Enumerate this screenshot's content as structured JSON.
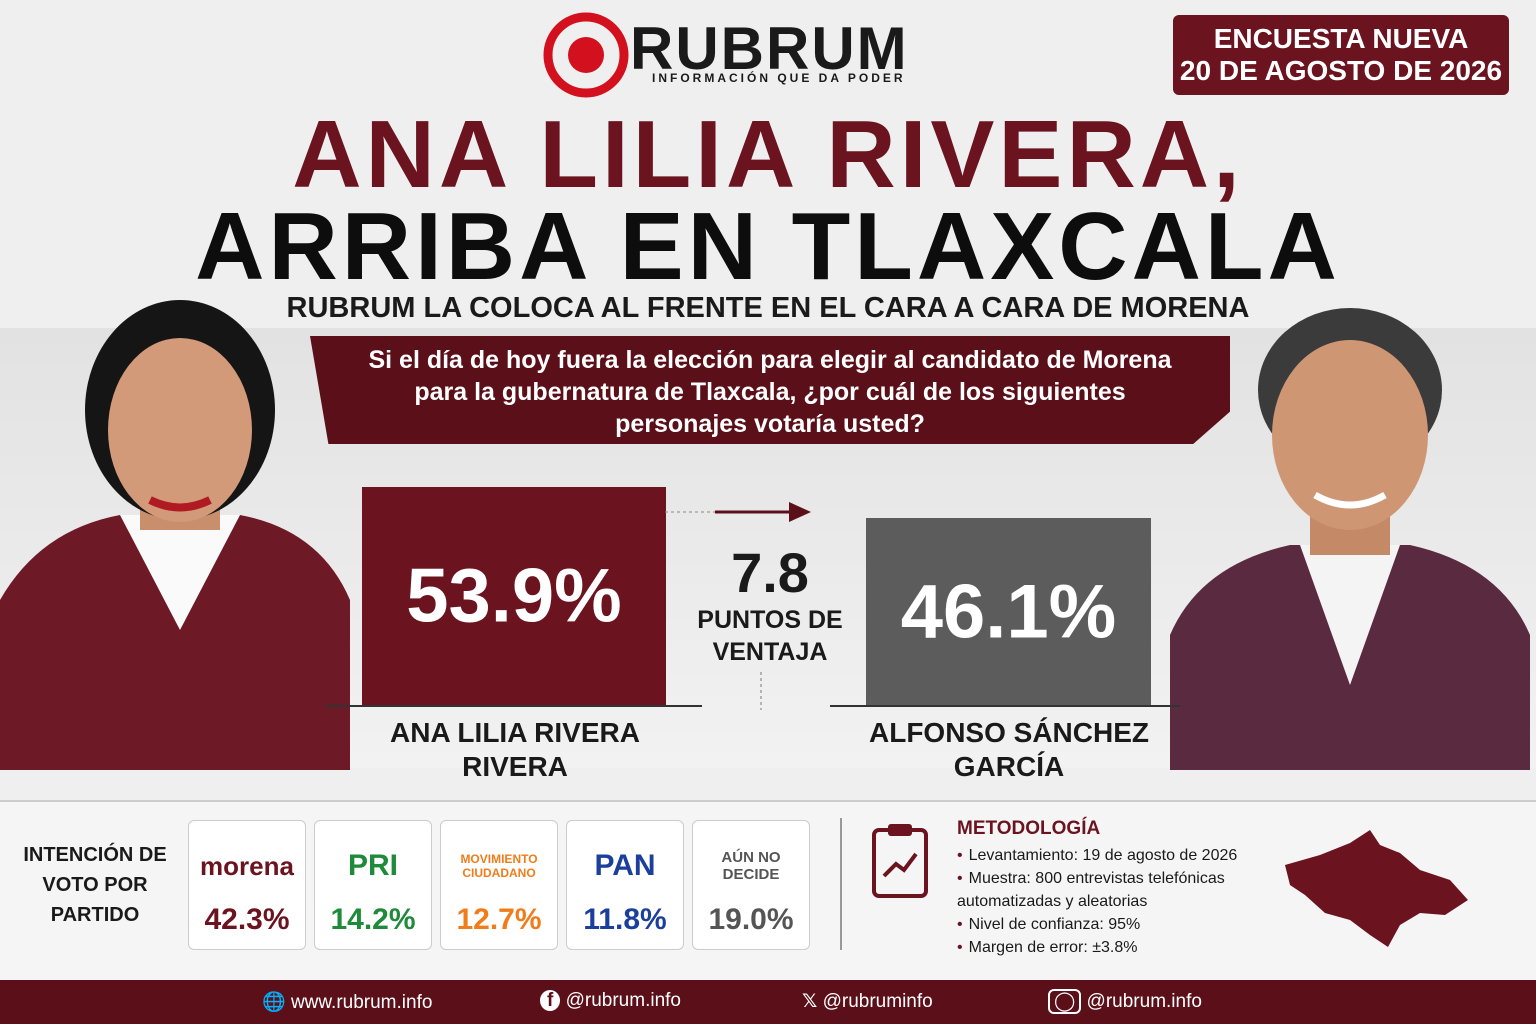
{
  "header": {
    "brand": "RUBRUM",
    "tagline": "INFORMACIÓN QUE DA PODER",
    "badge_line1": "ENCUESTA NUEVA",
    "badge_line2": "20 DE AGOSTO DE 2026",
    "headline_line1": "ANA LILIA RIVERA,",
    "headline_line2": "ARRIBA EN TLAXCALA",
    "subtitle": "RUBRUM LA COLOCA AL FRENTE EN EL CARA A CARA DE MORENA"
  },
  "question": "Si el día de hoy fuera la elección para elegir al candidato de Morena para la gubernatura de Tlaxcala, ¿por cuál de los siguientes personajes votaría usted?",
  "comparison": {
    "candidates": [
      {
        "name": "ANA LILIA RIVERA RIVERA",
        "value": 53.9,
        "value_label": "53.9%",
        "color": "#6b1420"
      },
      {
        "name": "ALFONSO SÁNCHEZ GARCÍA",
        "value": 46.1,
        "value_label": "46.1%",
        "color": "#5c5c5c"
      }
    ],
    "lead_value": "7.8",
    "lead_text": "PUNTOS DE VENTAJA"
  },
  "parties": {
    "heading": "INTENCIÓN DE VOTO POR PARTIDO",
    "items": [
      {
        "label": "morena",
        "value": "42.3%",
        "color": "#6b1420"
      },
      {
        "label": "PRI",
        "value": "14.2%",
        "color": "#1e8a3a"
      },
      {
        "label": "MOVIMIENTO CIUDADANO",
        "value": "12.7%",
        "color": "#f07d1a"
      },
      {
        "label": "PAN",
        "value": "11.8%",
        "color": "#1b3f9a"
      },
      {
        "label": "AÚN NO DECIDE",
        "value": "19.0%",
        "color": "#555555"
      }
    ]
  },
  "methodology": {
    "title": "METODOLOGÍA",
    "items": [
      "Levantamiento: 19 de agosto de 2026",
      "Muestra: 800 entrevistas telefónicas automatizadas y aleatorias",
      "Nivel de confianza: 95%",
      "Margen de error: ±3.8%"
    ]
  },
  "footer": {
    "links": [
      "www.rubrum.info",
      "@rubrum.info",
      "@rubruminfo",
      "@rubrum.info"
    ]
  }
}
